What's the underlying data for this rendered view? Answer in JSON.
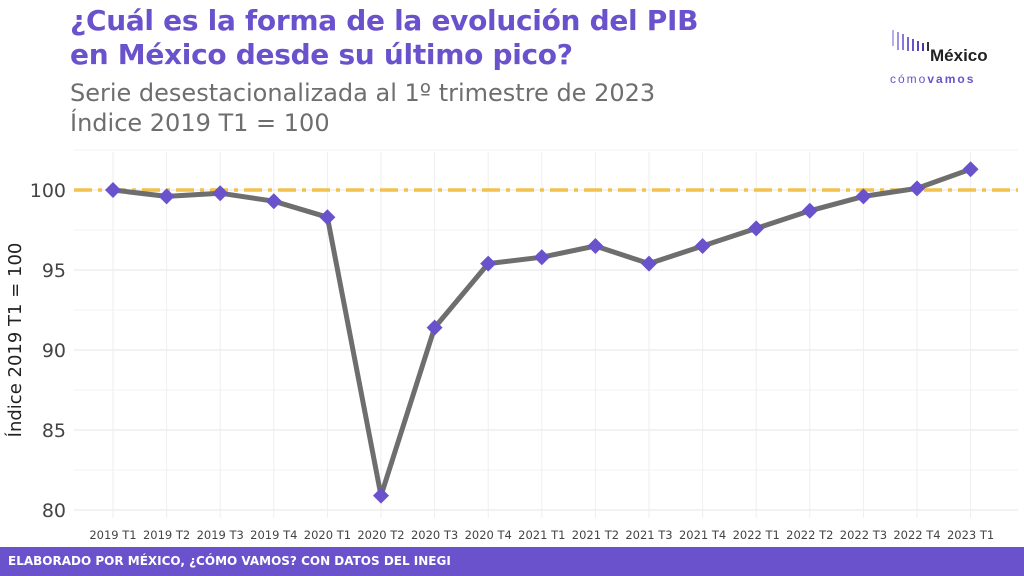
{
  "title_line1": "¿Cuál es la forma de la evolución del PIB",
  "title_line2": "en México desde su último pico?",
  "subtitle_line1": "Serie desestacionalizada al 1º trimestre de 2023",
  "subtitle_line2": "Índice 2019 T1 = 100",
  "logo": {
    "word": "México",
    "sub_light": "cómo",
    "sub_bold": "vamos"
  },
  "footer": "ELABORADO POR MÉXICO, ¿CÓMO VAMOS? CON DATOS DEL INEGI",
  "colors": {
    "accent": "#6a52cc",
    "line": "#6e6e6e",
    "reference": "#f2c14e"
  },
  "chart_data": {
    "type": "line",
    "ylabel": "Índice 2019 T1 = 100",
    "xlabel": "",
    "ylim": [
      79.5,
      102.5
    ],
    "yticks": [
      80,
      85,
      90,
      95,
      100
    ],
    "grid": true,
    "reference_line": 100,
    "categories": [
      "2019 T1",
      "2019 T2",
      "2019 T3",
      "2019 T4",
      "2020 T1",
      "2020 T2",
      "2020 T3",
      "2020 T4",
      "2021 T1",
      "2021 T2",
      "2021 T3",
      "2021 T4",
      "2022 T1",
      "2022 T2",
      "2022 T3",
      "2022 T4",
      "2023 T1"
    ],
    "values": [
      100.0,
      99.6,
      99.8,
      99.3,
      98.3,
      80.9,
      91.4,
      95.4,
      95.8,
      96.5,
      95.4,
      96.5,
      97.6,
      98.7,
      99.6,
      100.1,
      101.3
    ]
  }
}
